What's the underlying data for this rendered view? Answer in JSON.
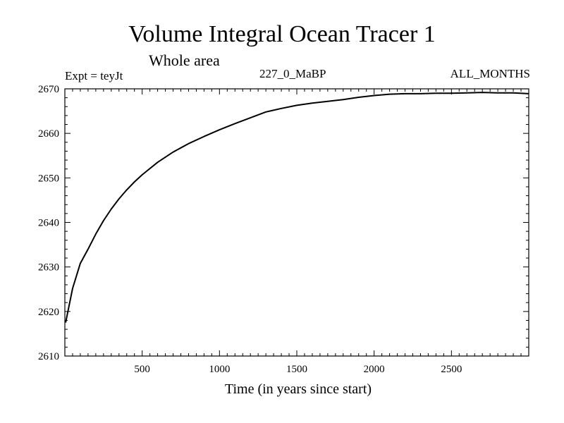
{
  "header": {
    "title": "Volume Integral Ocean Tracer 1",
    "subtitle": "Whole area",
    "expt": "Expt = teyJt",
    "center_label": "227_0_MaBP",
    "months_label": "ALL_MONTHS"
  },
  "chart_data": {
    "type": "line",
    "title": "Volume Integral Ocean Tracer 1",
    "subtitle": "Whole area",
    "xlabel": "Time (in years since start)",
    "ylabel": "",
    "xlim": [
      0,
      3000
    ],
    "ylim": [
      2610,
      2670
    ],
    "xticks": [
      500,
      1000,
      1500,
      2000,
      2500
    ],
    "yticks": [
      2610,
      2620,
      2630,
      2640,
      2650,
      2660,
      2670
    ],
    "grid": false,
    "series": [
      {
        "name": "",
        "color": "#000000",
        "x": [
          5,
          50,
          100,
          150,
          200,
          250,
          300,
          350,
          400,
          450,
          500,
          600,
          700,
          800,
          900,
          1000,
          1100,
          1200,
          1300,
          1400,
          1500,
          1600,
          1700,
          1800,
          1900,
          2000,
          2100,
          2200,
          2300,
          2400,
          2500,
          2600,
          2700,
          2800,
          2900,
          3000
        ],
        "y": [
          2617.5,
          2625.2,
          2630.8,
          2634.0,
          2637.4,
          2640.4,
          2643.0,
          2645.3,
          2647.3,
          2649.1,
          2650.7,
          2653.5,
          2655.8,
          2657.7,
          2659.3,
          2660.8,
          2662.2,
          2663.5,
          2664.8,
          2665.6,
          2666.3,
          2666.8,
          2667.2,
          2667.6,
          2668.1,
          2668.5,
          2668.8,
          2668.9,
          2668.9,
          2669.0,
          2669.0,
          2669.1,
          2669.2,
          2669.1,
          2669.1,
          2668.9
        ]
      }
    ]
  }
}
